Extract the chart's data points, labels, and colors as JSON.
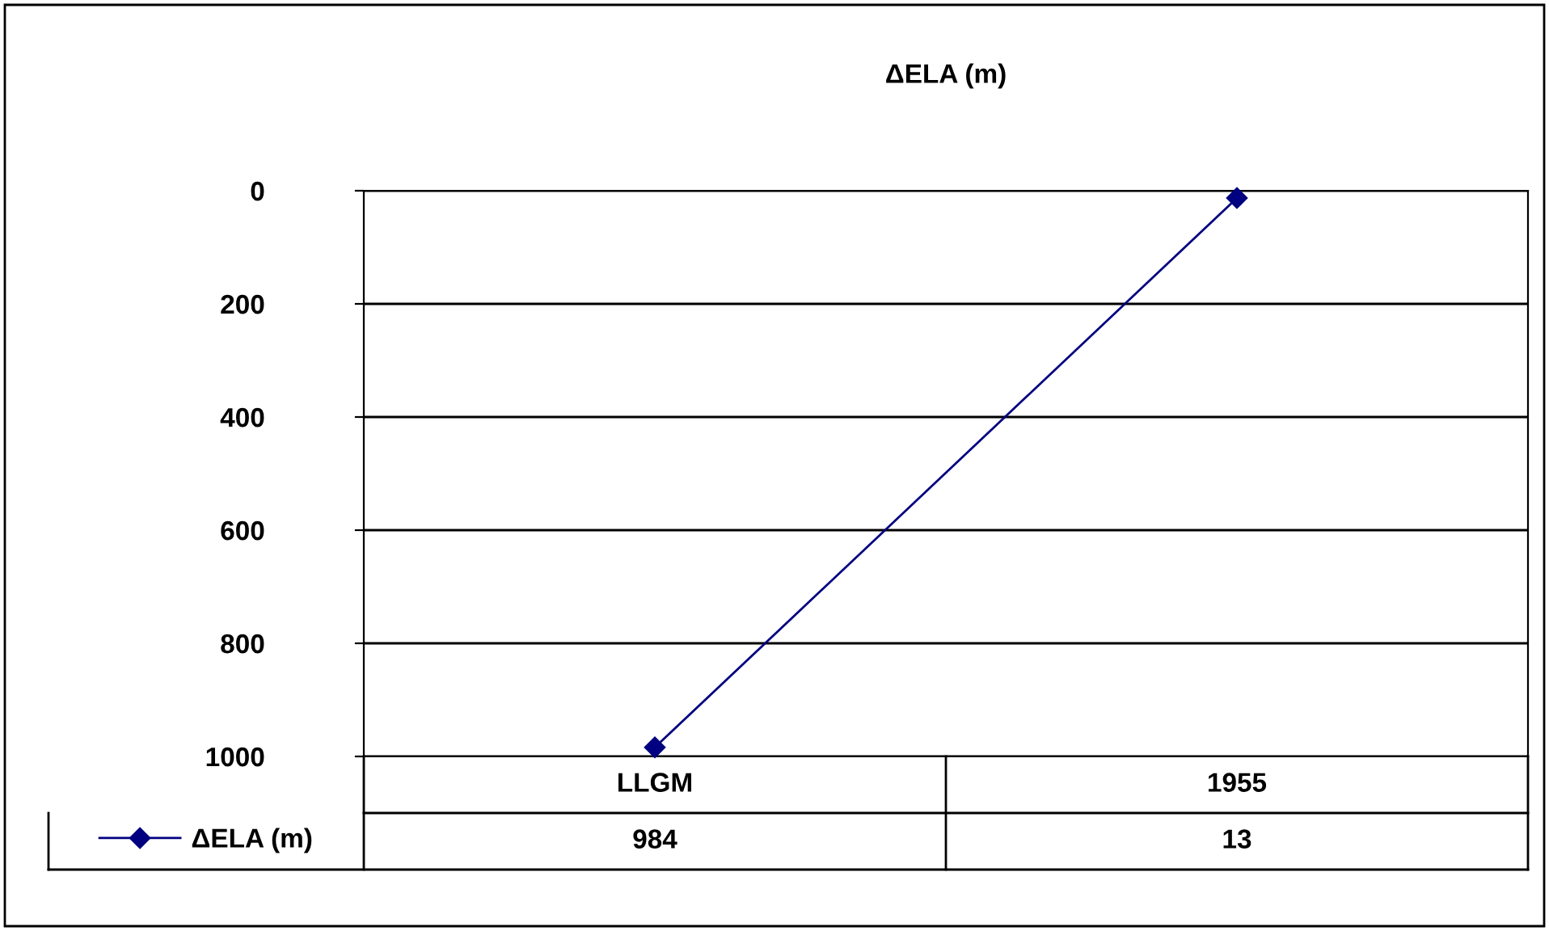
{
  "chart_data": {
    "type": "line",
    "title": "ΔELA (m)",
    "categories": [
      "LLGM",
      "1955"
    ],
    "series": [
      {
        "name": "ΔELA (m)",
        "color": "#000080",
        "values": [
          984,
          13
        ]
      }
    ],
    "ylim": [
      1000,
      0
    ],
    "yticks": [
      0,
      200,
      400,
      600,
      800,
      1000
    ],
    "grid": "y",
    "marker": "diamond",
    "line_style": "solid",
    "legend": "bottom",
    "data_labels": true
  }
}
